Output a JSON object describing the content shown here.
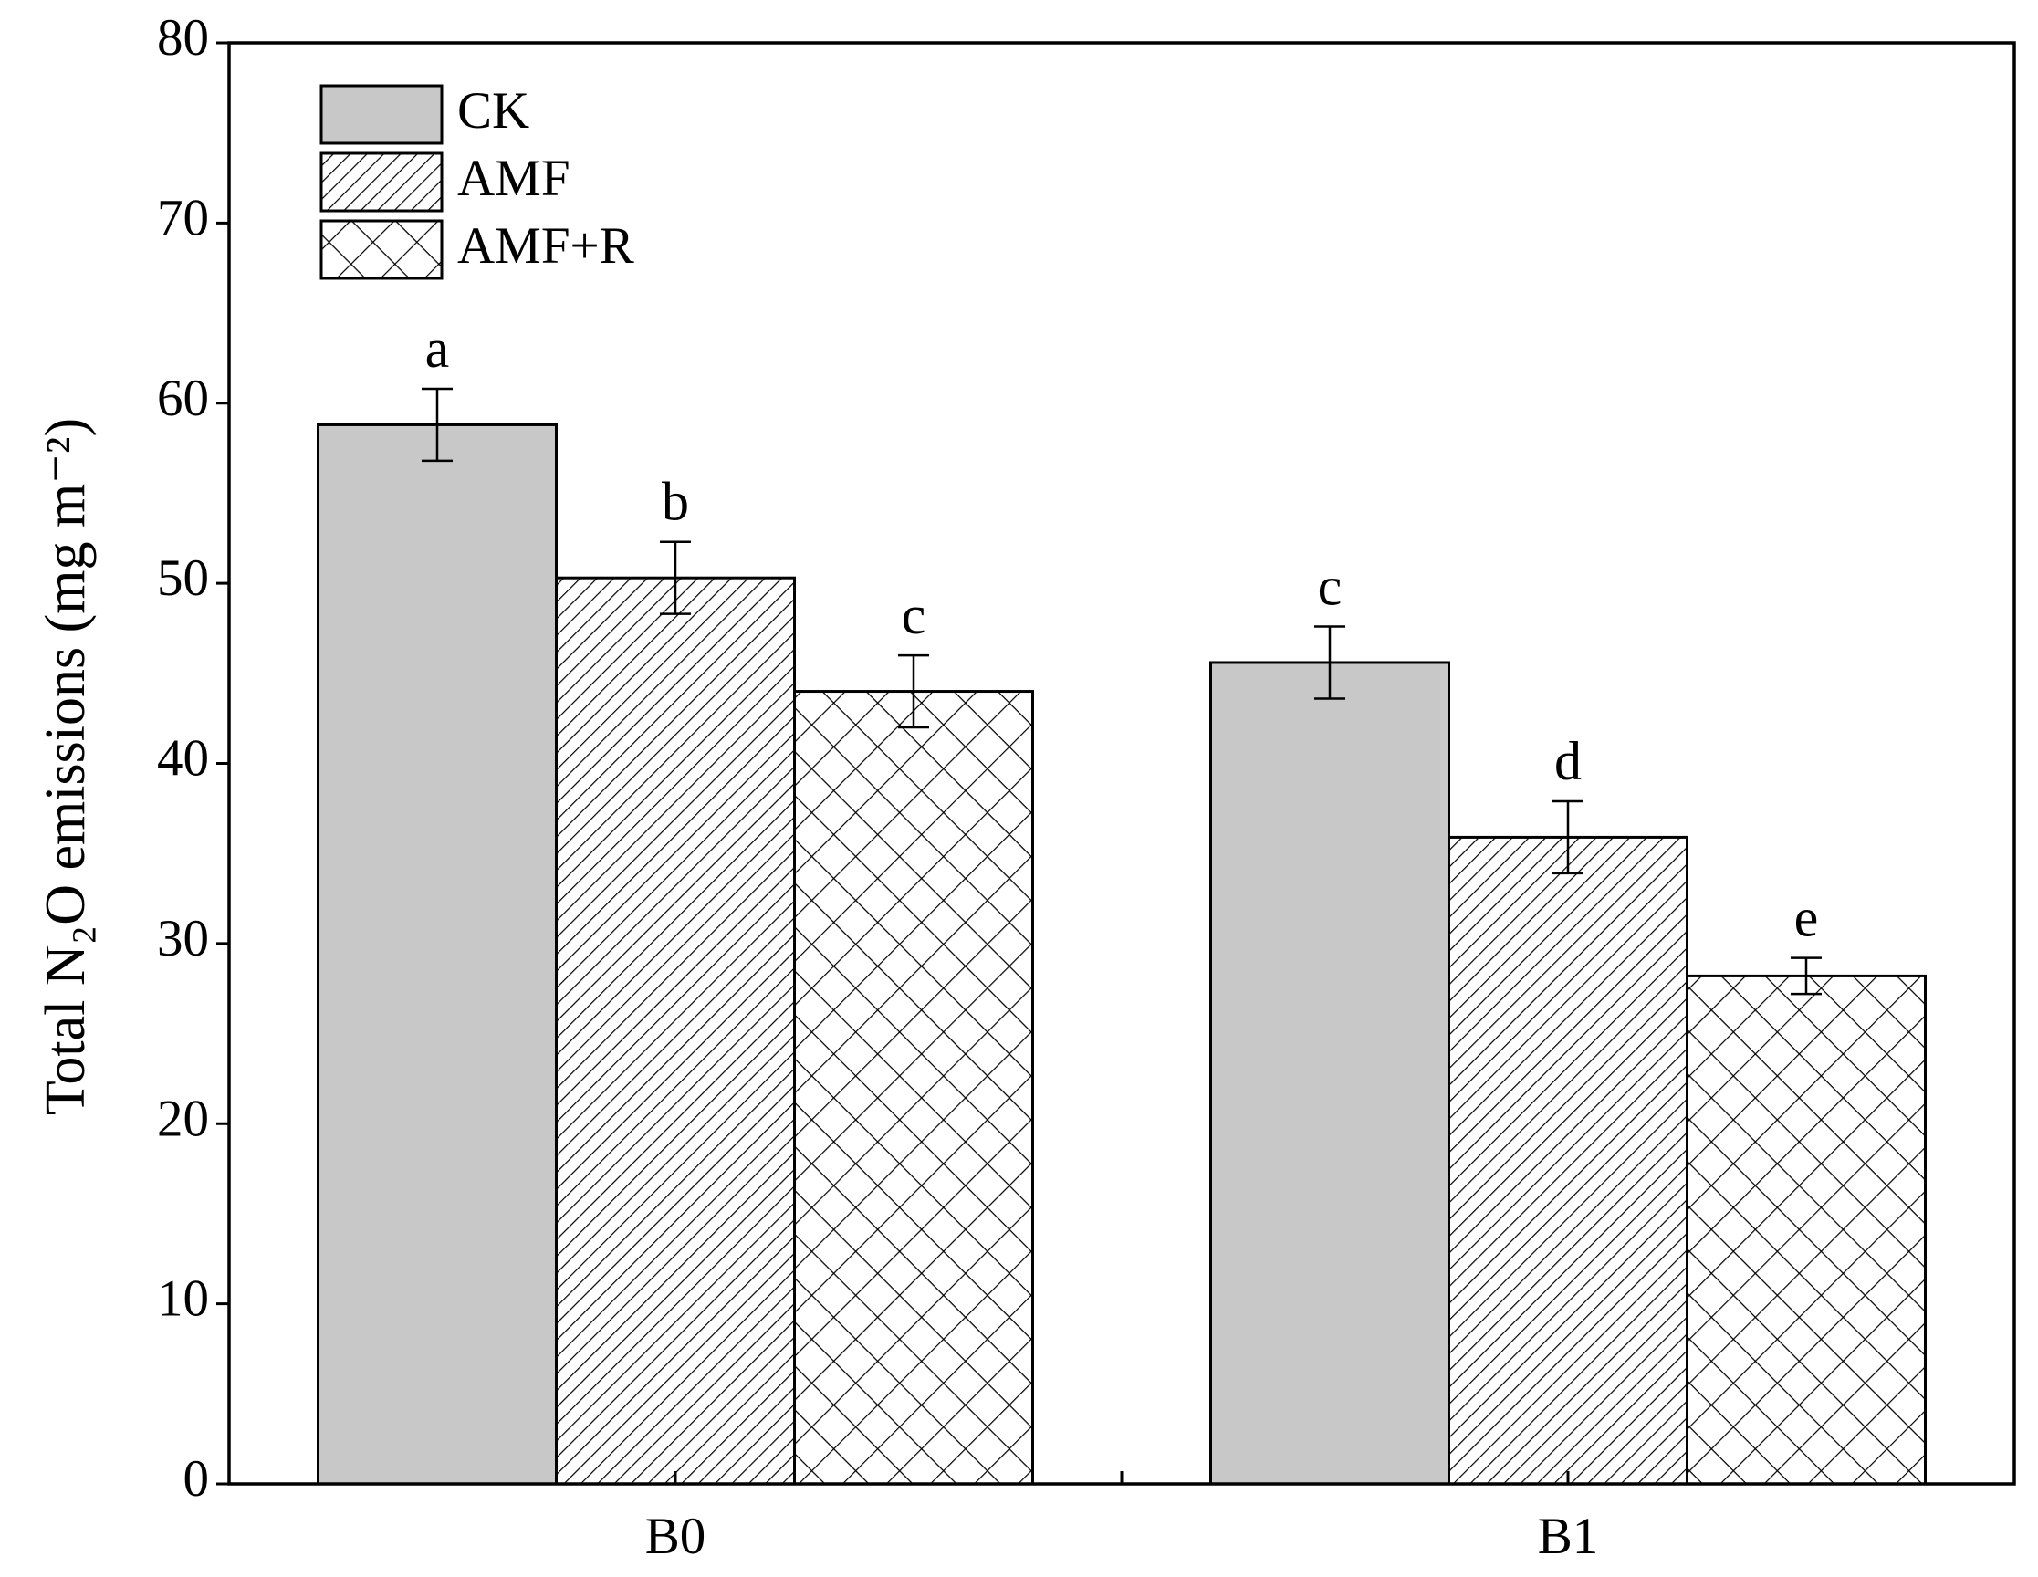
{
  "chart_data": {
    "type": "bar",
    "ylabel": "Total N₂O emissions (mg m⁻²)",
    "categories": [
      "B0",
      "B1"
    ],
    "ylim": [
      0,
      80
    ],
    "yticks": [
      0,
      10,
      20,
      30,
      40,
      50,
      60,
      70,
      80
    ],
    "legend": "upper left",
    "series": [
      {
        "name": "CK",
        "color": "#c8c8c8",
        "pattern": "solid",
        "values": [
          58.8,
          45.6
        ],
        "errors": [
          2.0,
          2.0
        ],
        "labels": [
          "a",
          "c"
        ]
      },
      {
        "name": "AMF",
        "color": "#ffffff",
        "pattern": "diagonal",
        "values": [
          50.3,
          35.9
        ],
        "errors": [
          2.0,
          2.0
        ],
        "labels": [
          "b",
          "d"
        ]
      },
      {
        "name": "AMF+R",
        "color": "#ffffff",
        "pattern": "crosshatch",
        "values": [
          44.0,
          28.2
        ],
        "errors": [
          2.0,
          1.0
        ],
        "labels": [
          "c",
          "e"
        ]
      }
    ]
  }
}
